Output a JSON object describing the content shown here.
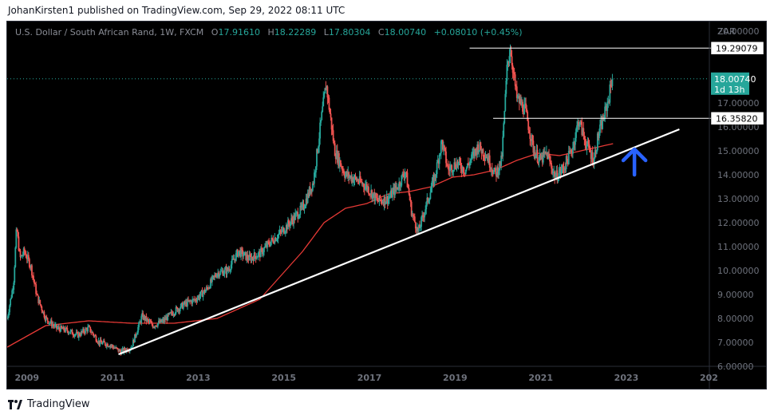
{
  "header": {
    "publisher_line": "JohanKirsten1 published on TradingView.com, Sep 29, 2022 08:11 UTC"
  },
  "footer": {
    "brand": "TradingView"
  },
  "colors": {
    "background": "#000000",
    "bull_candle": "#26a69a",
    "bear_candle": "#ef5350",
    "moving_average": "#e53935",
    "trendline": "#ffffff",
    "arrow": "#2962ff",
    "price_label_bg": "#26a69a",
    "axis_text": "#6e727c"
  },
  "legend": {
    "symbol": "U.S. Dollar / South African Rand, 1W, FXCM",
    "open_label": "O",
    "open": "17.91610",
    "high_label": "H",
    "high": "18.22289",
    "low_label": "L",
    "low": "17.80304",
    "close_label": "C",
    "close": "18.00740",
    "change": "+0.08010 (+0.45%)"
  },
  "chart_data": {
    "type": "candlestick",
    "currency": "ZAR",
    "x_ticks": [
      "2009",
      "2011",
      "2013",
      "2015",
      "2017",
      "2019",
      "2021",
      "2023",
      "202"
    ],
    "y_ticks": [
      "20.00000",
      "17.00000",
      "16.00000",
      "15.00000",
      "14.00000",
      "13.00000",
      "12.00000",
      "11.00000",
      "10.00000",
      "9.00000",
      "8.00000",
      "7.00000",
      "6.00000"
    ],
    "ylim": [
      6.0,
      20.0
    ],
    "xlim": [
      2008.6,
      2025.0
    ],
    "grid": false,
    "price_path": [
      [
        2008.6,
        8.0
      ],
      [
        2008.75,
        9.5
      ],
      [
        2008.82,
        11.8
      ],
      [
        2008.9,
        10.5
      ],
      [
        2009.0,
        10.8
      ],
      [
        2009.15,
        10.2
      ],
      [
        2009.3,
        8.9
      ],
      [
        2009.5,
        8.0
      ],
      [
        2009.75,
        7.6
      ],
      [
        2010.0,
        7.5
      ],
      [
        2010.25,
        7.3
      ],
      [
        2010.5,
        7.6
      ],
      [
        2010.75,
        7.0
      ],
      [
        2011.0,
        6.9
      ],
      [
        2011.25,
        6.6
      ],
      [
        2011.5,
        6.8
      ],
      [
        2011.75,
        8.1
      ],
      [
        2012.0,
        7.7
      ],
      [
        2012.25,
        7.9
      ],
      [
        2012.5,
        8.3
      ],
      [
        2012.75,
        8.6
      ],
      [
        2013.0,
        8.8
      ],
      [
        2013.25,
        9.2
      ],
      [
        2013.5,
        9.9
      ],
      [
        2013.75,
        10.0
      ],
      [
        2014.0,
        10.8
      ],
      [
        2014.25,
        10.5
      ],
      [
        2014.5,
        10.7
      ],
      [
        2014.75,
        11.2
      ],
      [
        2015.0,
        11.6
      ],
      [
        2015.25,
        12.1
      ],
      [
        2015.5,
        12.6
      ],
      [
        2015.75,
        13.7
      ],
      [
        2015.95,
        16.5
      ],
      [
        2016.05,
        17.8
      ],
      [
        2016.25,
        15.0
      ],
      [
        2016.5,
        14.0
      ],
      [
        2016.75,
        13.8
      ],
      [
        2017.0,
        13.5
      ],
      [
        2017.25,
        12.9
      ],
      [
        2017.5,
        13.0
      ],
      [
        2017.75,
        13.6
      ],
      [
        2017.9,
        14.2
      ],
      [
        2018.05,
        12.4
      ],
      [
        2018.2,
        11.6
      ],
      [
        2018.4,
        12.8
      ],
      [
        2018.6,
        14.0
      ],
      [
        2018.75,
        15.4
      ],
      [
        2018.9,
        14.2
      ],
      [
        2019.1,
        14.5
      ],
      [
        2019.3,
        14.2
      ],
      [
        2019.6,
        15.2
      ],
      [
        2019.8,
        14.8
      ],
      [
        2020.0,
        14.0
      ],
      [
        2020.15,
        14.6
      ],
      [
        2020.28,
        18.6
      ],
      [
        2020.35,
        19.3
      ],
      [
        2020.5,
        17.2
      ],
      [
        2020.7,
        16.7
      ],
      [
        2020.9,
        15.0
      ],
      [
        2021.05,
        14.6
      ],
      [
        2021.2,
        14.9
      ],
      [
        2021.4,
        13.9
      ],
      [
        2021.6,
        14.3
      ],
      [
        2021.8,
        15.1
      ],
      [
        2021.95,
        16.3
      ],
      [
        2022.1,
        15.4
      ],
      [
        2022.3,
        14.6
      ],
      [
        2022.4,
        15.6
      ],
      [
        2022.55,
        16.5
      ],
      [
        2022.65,
        17.2
      ],
      [
        2022.74,
        18.2
      ]
    ],
    "series": [
      {
        "values": [
          [
            2008.6,
            6.8
          ],
          [
            2009.5,
            7.7
          ],
          [
            2010.5,
            7.9
          ],
          [
            2011.5,
            7.8
          ],
          [
            2012.5,
            7.8
          ],
          [
            2013.5,
            8.0
          ],
          [
            2014.5,
            8.8
          ],
          [
            2015.5,
            10.8
          ],
          [
            2016.0,
            12.0
          ],
          [
            2016.5,
            12.6
          ],
          [
            2017.0,
            12.8
          ],
          [
            2017.5,
            13.2
          ],
          [
            2018.0,
            13.3
          ],
          [
            2018.5,
            13.5
          ],
          [
            2019.0,
            13.9
          ],
          [
            2019.5,
            14.0
          ],
          [
            2020.0,
            14.2
          ],
          [
            2020.5,
            14.6
          ],
          [
            2021.0,
            14.9
          ],
          [
            2021.5,
            14.8
          ],
          [
            2022.0,
            15.0
          ],
          [
            2022.5,
            15.2
          ],
          [
            2022.75,
            15.3
          ]
        ]
      }
    ],
    "trendline": {
      "from": [
        2011.2,
        6.5
      ],
      "to": [
        2024.3,
        15.9
      ]
    },
    "horizontal_lines": [
      {
        "label": "19.29079",
        "value": 19.29079,
        "x_start": 2019.4
      },
      {
        "label": "16.35820",
        "value": 16.3582,
        "x_start": 2019.95
      }
    ],
    "current_price": {
      "label": "18.00740",
      "value": 18.0074,
      "countdown": "1d 13h"
    },
    "annotations": [
      {
        "kind": "up-arrow",
        "x": 2023.25,
        "y": 14.0
      }
    ]
  }
}
